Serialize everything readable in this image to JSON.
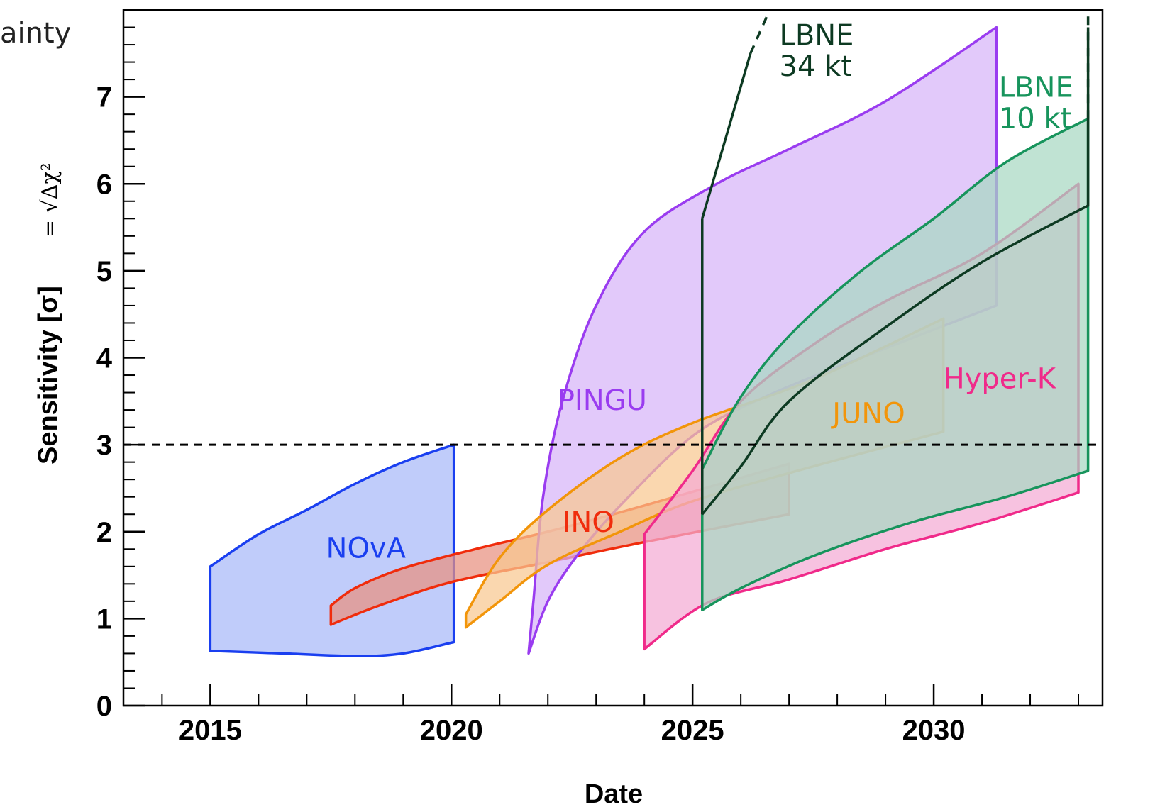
{
  "corner_text": "ainty",
  "chart_data": {
    "type": "area",
    "xlabel": "Date",
    "ylabel": "Sensitivity [σ]",
    "ylabel_formula": "= √Δχ²",
    "xlim": [
      2013.2,
      2033.5
    ],
    "ylim": [
      0,
      8
    ],
    "x_ticks": [
      2015,
      2020,
      2025,
      2030
    ],
    "y_ticks": [
      0,
      1,
      2,
      3,
      4,
      5,
      6,
      7
    ],
    "reference_line": {
      "y": 3,
      "style": "dashed"
    },
    "grid": false,
    "series": [
      {
        "name": "NOvA",
        "color": "#1a3ff0",
        "fill": "#a8b8f8",
        "label_pos": [
          2017.4,
          1.7
        ],
        "upper": [
          [
            2015.0,
            1.6
          ],
          [
            2016.0,
            1.97
          ],
          [
            2017.0,
            2.25
          ],
          [
            2018.0,
            2.55
          ],
          [
            2019.0,
            2.8
          ],
          [
            2020.05,
            3.0
          ]
        ],
        "lower": [
          [
            2015.0,
            0.63
          ],
          [
            2016.5,
            0.6
          ],
          [
            2018.0,
            0.57
          ],
          [
            2019.0,
            0.6
          ],
          [
            2020.05,
            0.73
          ]
        ]
      },
      {
        "name": "INO",
        "color": "#f02c0c",
        "fill": "#e89080",
        "label_pos": [
          2022.3,
          2.0
        ],
        "upper": [
          [
            2017.5,
            1.15
          ],
          [
            2018.0,
            1.35
          ],
          [
            2019.0,
            1.58
          ],
          [
            2020.5,
            1.8
          ],
          [
            2022.0,
            2.0
          ],
          [
            2024.0,
            2.3
          ],
          [
            2027.0,
            2.78
          ]
        ],
        "lower": [
          [
            2017.5,
            0.93
          ],
          [
            2018.5,
            1.15
          ],
          [
            2020.0,
            1.42
          ],
          [
            2022.0,
            1.65
          ],
          [
            2024.0,
            1.88
          ],
          [
            2027.0,
            2.2
          ]
        ]
      },
      {
        "name": "PINGU",
        "color": "#9a3cf0",
        "fill": "#d7b4f8",
        "label_pos": [
          2022.2,
          3.4
        ],
        "upper": [
          [
            2021.6,
            0.6
          ],
          [
            2021.7,
            1.2
          ],
          [
            2021.9,
            2.4
          ],
          [
            2022.3,
            3.5
          ],
          [
            2023.0,
            4.6
          ],
          [
            2024.0,
            5.45
          ],
          [
            2025.5,
            6.0
          ],
          [
            2027.0,
            6.4
          ],
          [
            2029.0,
            6.95
          ],
          [
            2031.3,
            7.8
          ]
        ],
        "lower": [
          [
            2021.6,
            0.6
          ],
          [
            2022.0,
            1.2
          ],
          [
            2022.6,
            1.72
          ],
          [
            2023.5,
            2.3
          ],
          [
            2025.0,
            3.1
          ],
          [
            2026.5,
            3.55
          ],
          [
            2028.5,
            4.0
          ],
          [
            2031.3,
            4.6
          ]
        ]
      },
      {
        "name": "JUNO",
        "color": "#f2950a",
        "fill": "#f8c890",
        "label_pos": [
          2027.9,
          3.25
        ],
        "upper": [
          [
            2020.3,
            1.05
          ],
          [
            2021.0,
            1.7
          ],
          [
            2022.0,
            2.25
          ],
          [
            2023.5,
            2.85
          ],
          [
            2025.0,
            3.25
          ],
          [
            2027.5,
            3.75
          ],
          [
            2030.2,
            4.45
          ]
        ],
        "lower": [
          [
            2020.3,
            0.9
          ],
          [
            2021.0,
            1.2
          ],
          [
            2022.0,
            1.62
          ],
          [
            2023.5,
            2.0
          ],
          [
            2025.0,
            2.35
          ],
          [
            2027.5,
            2.75
          ],
          [
            2030.2,
            3.15
          ]
        ]
      },
      {
        "name": "Hyper-K",
        "color": "#f02a8a",
        "fill": "#f4aad4",
        "label_pos": [
          2030.2,
          3.65
        ],
        "upper": [
          [
            2024.0,
            1.97
          ],
          [
            2025.0,
            2.7
          ],
          [
            2026.0,
            3.5
          ],
          [
            2027.5,
            4.15
          ],
          [
            2029.0,
            4.65
          ],
          [
            2031.0,
            5.2
          ],
          [
            2033.0,
            6.0
          ]
        ],
        "lower": [
          [
            2024.0,
            0.65
          ],
          [
            2025.3,
            1.18
          ],
          [
            2027.0,
            1.45
          ],
          [
            2029.0,
            1.8
          ],
          [
            2031.0,
            2.1
          ],
          [
            2033.0,
            2.45
          ]
        ]
      },
      {
        "name": "LBNE 10 kt",
        "name_lines": [
          "LBNE",
          "10 kt"
        ],
        "color": "#17945c",
        "fill": "#a8d8c2",
        "label_pos": [
          2031.35,
          7.0
        ],
        "upper": [
          [
            2025.2,
            2.72
          ],
          [
            2026.0,
            3.55
          ],
          [
            2027.0,
            4.25
          ],
          [
            2028.5,
            5.0
          ],
          [
            2030.0,
            5.6
          ],
          [
            2031.5,
            6.25
          ],
          [
            2033.2,
            6.75
          ]
        ],
        "lower": [
          [
            2025.2,
            1.1
          ],
          [
            2026.0,
            1.35
          ],
          [
            2027.5,
            1.72
          ],
          [
            2029.5,
            2.1
          ],
          [
            2031.5,
            2.4
          ],
          [
            2033.2,
            2.7
          ]
        ],
        "extension": {
          "x": 2033.2,
          "y_from": 6.75,
          "y_to": 8.0,
          "style": "dashed"
        }
      },
      {
        "name": "LBNE 34 kt",
        "name_lines": [
          "LBNE",
          "34 kt"
        ],
        "color": "#0d3a22",
        "fill": "none",
        "label_pos": [
          2026.8,
          7.6
        ],
        "path": [
          [
            2025.2,
            2.2
          ],
          [
            2026.0,
            2.75
          ],
          [
            2027.0,
            3.5
          ],
          [
            2029.0,
            4.35
          ],
          [
            2031.0,
            5.1
          ],
          [
            2033.2,
            5.75
          ],
          [
            2033.2,
            7.8
          ]
        ],
        "vertical": {
          "x": 2025.2,
          "y_from": 2.2,
          "y_to": 5.6
        },
        "diagonal": {
          "from": [
            2025.2,
            5.6
          ],
          "to": [
            2026.2,
            7.5
          ]
        },
        "diagonal_ext": {
          "from": [
            2026.2,
            7.5
          ],
          "to": [
            2026.6,
            8.0
          ],
          "style": "dashed"
        }
      }
    ]
  }
}
